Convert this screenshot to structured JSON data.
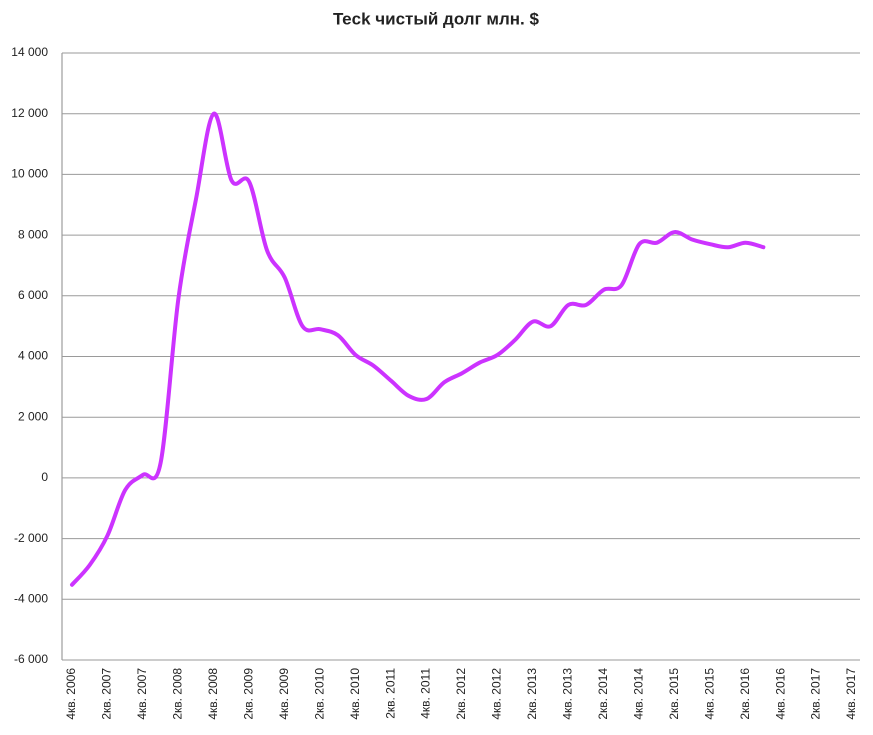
{
  "chart_data": {
    "type": "line",
    "title": "Teck чистый долг млн. $",
    "categories": [
      "4кв. 2006",
      null,
      "2кв. 2007",
      null,
      "4кв. 2007",
      null,
      "2кв. 2008",
      null,
      "4кв. 2008",
      null,
      "2кв. 2009",
      null,
      "4кв. 2009",
      null,
      "2кв. 2010",
      null,
      "4кв. 2010",
      null,
      "2кв. 2011",
      null,
      "4кв. 2011",
      null,
      "2кв. 2012",
      null,
      "4кв. 2012",
      null,
      "2кв. 2013",
      null,
      "4кв. 2013",
      null,
      "2кв. 2014",
      null,
      "4кв. 2014",
      null,
      "2кв. 2015",
      null,
      "4кв. 2015",
      null,
      "2кв. 2016",
      null,
      "4кв. 2016",
      null,
      "2кв. 2017",
      null,
      "4кв. 2017"
    ],
    "series": [
      {
        "name": "Teck",
        "color": "#cc33ff",
        "values": [
          -3520,
          -2870,
          -1900,
          -400,
          100,
          500,
          5900,
          9200,
          12000,
          9800,
          9750,
          7500,
          6600,
          5000,
          4900,
          4700,
          4050,
          3700,
          3200,
          2700,
          2600,
          3150,
          3450,
          3800,
          4050,
          4550,
          5150,
          5000,
          5700,
          5700,
          6200,
          6350,
          7700,
          7750,
          8100,
          7850,
          7700,
          7600,
          7750,
          7600,
          null,
          null,
          null,
          null,
          null
        ]
      }
    ],
    "ylim": [
      -6000,
      14000
    ],
    "yticks": [
      {
        "value": -6000,
        "label": "-6 000"
      },
      {
        "value": -4000,
        "label": "-4 000"
      },
      {
        "value": -2000,
        "label": "-2 000"
      },
      0,
      {
        "value": 2000,
        "label": "2 000"
      },
      {
        "value": 4000,
        "label": "4 000"
      },
      {
        "value": 6000,
        "label": "6 000"
      },
      {
        "value": 8000,
        "label": "8 000"
      },
      {
        "value": 10000,
        "label": "10 000"
      },
      {
        "value": 12000,
        "label": "12 000"
      },
      {
        "value": 14000,
        "label": "14 000"
      }
    ],
    "grid": true
  }
}
